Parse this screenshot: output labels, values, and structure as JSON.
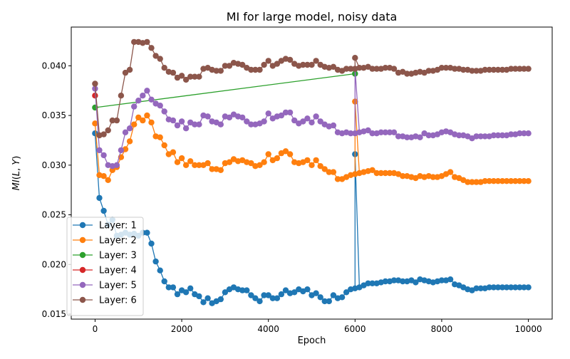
{
  "chart_data": {
    "type": "line",
    "title": "MI for large model, noisy data",
    "xlabel": "Epoch",
    "ylabel": "MI(L, Y)",
    "xlim": [
      -550,
      10550
    ],
    "ylim": [
      0.0145,
      0.0439
    ],
    "x_ticks": [
      0,
      2000,
      4000,
      6000,
      8000,
      10000
    ],
    "x_tick_labels": [
      "0",
      "2000",
      "4000",
      "6000",
      "8000",
      "10000"
    ],
    "y_ticks": [
      0.015,
      0.02,
      0.025,
      0.03,
      0.035,
      0.04
    ],
    "y_tick_labels": [
      "0.015",
      "0.020",
      "0.025",
      "0.030",
      "0.035",
      "0.040"
    ],
    "grid": false,
    "legend_position": "lower-left",
    "x": [
      0,
      100,
      200,
      300,
      400,
      500,
      600,
      700,
      800,
      900,
      1000,
      1100,
      1200,
      1300,
      1400,
      1500,
      1600,
      1700,
      1800,
      1900,
      2000,
      2100,
      2200,
      2300,
      2400,
      2500,
      2600,
      2700,
      2800,
      2900,
      3000,
      3100,
      3200,
      3300,
      3400,
      3500,
      3600,
      3700,
      3800,
      3900,
      4000,
      4100,
      4200,
      4300,
      4400,
      4500,
      4600,
      4700,
      4800,
      4900,
      5000,
      5100,
      5200,
      5300,
      5400,
      5500,
      5600,
      5700,
      5800,
      5900,
      6000,
      6100,
      6200,
      6300,
      6400,
      6500,
      6600,
      6700,
      6800,
      6900,
      7000,
      7100,
      7200,
      7300,
      7400,
      7500,
      7600,
      7700,
      7800,
      7900,
      8000,
      8100,
      8200,
      8300,
      8400,
      8500,
      8600,
      8700,
      8800,
      8900,
      9000,
      9100,
      9200,
      9300,
      9400,
      9500,
      9600,
      9700,
      9800,
      9900,
      10000
    ],
    "jumps": [
      {
        "series": "Layer: 1",
        "x": 6000,
        "from": 0.0176,
        "to": 0.0311
      },
      {
        "series": "Layer: 2",
        "x": 6000,
        "from": 0.0291,
        "to": 0.0364
      },
      {
        "series": "Layer: 5",
        "x": 6000,
        "from": 0.0332,
        "to": 0.0397
      },
      {
        "series": "Layer: 6",
        "x": 6000,
        "from": 0.0397,
        "to": 0.0408
      }
    ],
    "series": [
      {
        "name": "Layer: 1",
        "color": "#1f77b4",
        "values": [
          0.0332,
          0.0267,
          0.0254,
          0.024,
          0.0245,
          0.0229,
          0.023,
          0.0232,
          0.023,
          0.0231,
          0.0229,
          0.0232,
          0.0232,
          0.0221,
          0.0203,
          0.0194,
          0.0183,
          0.0177,
          0.0177,
          0.017,
          0.0174,
          0.0172,
          0.0176,
          0.017,
          0.0168,
          0.0162,
          0.0166,
          0.0161,
          0.0163,
          0.0165,
          0.0172,
          0.0175,
          0.0177,
          0.0175,
          0.0174,
          0.0174,
          0.0169,
          0.0166,
          0.0163,
          0.0169,
          0.0169,
          0.0166,
          0.0166,
          0.017,
          0.0174,
          0.0171,
          0.0172,
          0.0175,
          0.0173,
          0.0175,
          0.0169,
          0.0171,
          0.0167,
          0.0163,
          0.0163,
          0.0169,
          0.0166,
          0.0167,
          0.0172,
          0.0175,
          0.0176,
          0.0177,
          0.0179,
          0.0181,
          0.0181,
          0.0181,
          0.0182,
          0.0183,
          0.0183,
          0.0184,
          0.0184,
          0.0183,
          0.0183,
          0.0184,
          0.0182,
          0.0185,
          0.0184,
          0.0183,
          0.0182,
          0.0183,
          0.0184,
          0.0184,
          0.0185,
          0.018,
          0.0179,
          0.0177,
          0.0175,
          0.0174,
          0.0176,
          0.0176,
          0.0176,
          0.0177,
          0.0177,
          0.0177,
          0.0177,
          0.0177,
          0.0177,
          0.0177,
          0.0177,
          0.0177,
          0.0177
        ]
      },
      {
        "name": "Layer: 2",
        "color": "#ff7f0e",
        "values": [
          0.0342,
          0.029,
          0.0289,
          0.0285,
          0.0295,
          0.0298,
          0.0308,
          0.0316,
          0.0324,
          0.0341,
          0.0348,
          0.0345,
          0.035,
          0.0343,
          0.0329,
          0.0328,
          0.032,
          0.0311,
          0.0313,
          0.0303,
          0.0307,
          0.03,
          0.0304,
          0.03,
          0.03,
          0.03,
          0.0302,
          0.0296,
          0.0296,
          0.0295,
          0.0302,
          0.0303,
          0.0306,
          0.0304,
          0.0305,
          0.0303,
          0.0302,
          0.0299,
          0.03,
          0.0303,
          0.0311,
          0.0305,
          0.0307,
          0.0312,
          0.0314,
          0.0311,
          0.0303,
          0.0302,
          0.0303,
          0.0305,
          0.03,
          0.0305,
          0.0299,
          0.0296,
          0.0293,
          0.0293,
          0.0286,
          0.0286,
          0.0288,
          0.029,
          0.0291,
          0.0292,
          0.0293,
          0.0294,
          0.0295,
          0.0292,
          0.0292,
          0.0292,
          0.0292,
          0.0292,
          0.0291,
          0.0289,
          0.0289,
          0.0288,
          0.0287,
          0.0289,
          0.0288,
          0.0289,
          0.0288,
          0.0288,
          0.0289,
          0.0291,
          0.0293,
          0.0288,
          0.0287,
          0.0285,
          0.0283,
          0.0283,
          0.0283,
          0.0283,
          0.0284,
          0.0284,
          0.0284,
          0.0284,
          0.0284,
          0.0284,
          0.0284,
          0.0284,
          0.0284,
          0.0284,
          0.0284
        ]
      },
      {
        "name": "Layer: 3",
        "color": "#2ca02c",
        "points": [
          [
            0,
            0.0358
          ],
          [
            6000,
            0.0392
          ]
        ]
      },
      {
        "name": "Layer: 4",
        "color": "#d62728",
        "points": [
          [
            0,
            0.037
          ]
        ]
      },
      {
        "name": "Layer: 5",
        "color": "#9467bd",
        "values": [
          0.0377,
          0.0315,
          0.031,
          0.03,
          0.0299,
          0.03,
          0.0315,
          0.0333,
          0.0337,
          0.0359,
          0.0365,
          0.037,
          0.0375,
          0.0366,
          0.0362,
          0.036,
          0.0354,
          0.0346,
          0.0345,
          0.034,
          0.0344,
          0.0337,
          0.0343,
          0.0341,
          0.0341,
          0.035,
          0.0349,
          0.0344,
          0.0343,
          0.0341,
          0.0349,
          0.0348,
          0.0351,
          0.0349,
          0.0348,
          0.0344,
          0.0341,
          0.0341,
          0.0342,
          0.0344,
          0.0352,
          0.0347,
          0.0349,
          0.035,
          0.0353,
          0.0353,
          0.0345,
          0.0342,
          0.0344,
          0.0347,
          0.0343,
          0.0349,
          0.0344,
          0.0341,
          0.0339,
          0.034,
          0.0333,
          0.0332,
          0.0333,
          0.0332,
          0.0332,
          0.0333,
          0.0334,
          0.0335,
          0.0332,
          0.0332,
          0.0333,
          0.0333,
          0.0333,
          0.0333,
          0.0329,
          0.0329,
          0.0328,
          0.0328,
          0.0329,
          0.0328,
          0.0332,
          0.033,
          0.033,
          0.0331,
          0.0333,
          0.0334,
          0.0333,
          0.0331,
          0.033,
          0.033,
          0.0329,
          0.0327,
          0.0329,
          0.0329,
          0.0329,
          0.0329,
          0.033,
          0.033,
          0.033,
          0.033,
          0.0331,
          0.0331,
          0.0332,
          0.0332,
          0.0332
        ]
      },
      {
        "name": "Layer: 6",
        "color": "#8c564b",
        "values": [
          0.0382,
          0.033,
          0.0331,
          0.0335,
          0.0345,
          0.0345,
          0.037,
          0.0393,
          0.0396,
          0.0424,
          0.0424,
          0.0423,
          0.0424,
          0.0418,
          0.041,
          0.0407,
          0.0398,
          0.0394,
          0.0393,
          0.0388,
          0.039,
          0.0386,
          0.0389,
          0.0389,
          0.0389,
          0.0397,
          0.0398,
          0.0396,
          0.0395,
          0.0395,
          0.04,
          0.04,
          0.0403,
          0.0402,
          0.0401,
          0.0398,
          0.0396,
          0.0396,
          0.0396,
          0.0401,
          0.0405,
          0.04,
          0.0402,
          0.0405,
          0.0407,
          0.0406,
          0.0402,
          0.04,
          0.0401,
          0.0401,
          0.0401,
          0.0405,
          0.0401,
          0.0399,
          0.0398,
          0.0399,
          0.0396,
          0.0395,
          0.0397,
          0.0397,
          0.0397,
          0.0398,
          0.0398,
          0.0399,
          0.0397,
          0.0397,
          0.0397,
          0.0398,
          0.0398,
          0.0397,
          0.0393,
          0.0394,
          0.0392,
          0.0392,
          0.0393,
          0.0394,
          0.0393,
          0.0395,
          0.0395,
          0.0396,
          0.0398,
          0.0398,
          0.0398,
          0.0397,
          0.0397,
          0.0396,
          0.0396,
          0.0395,
          0.0395,
          0.0395,
          0.0396,
          0.0396,
          0.0396,
          0.0396,
          0.0396,
          0.0396,
          0.0397,
          0.0397,
          0.0397,
          0.0397,
          0.0397
        ]
      }
    ]
  }
}
